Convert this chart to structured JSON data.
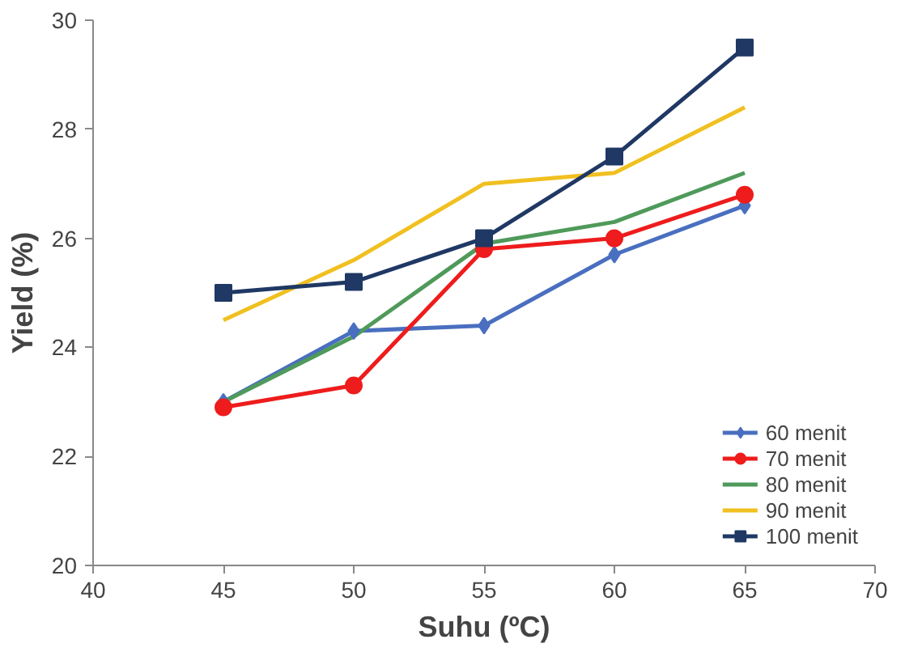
{
  "chart_data": {
    "type": "line",
    "xlabel": "Suhu (ºC)",
    "ylabel": "Yield (%)",
    "x": [
      45,
      50,
      55,
      60,
      65
    ],
    "xlim": [
      40,
      70
    ],
    "xticks": [
      40,
      45,
      50,
      55,
      60,
      65,
      70
    ],
    "ylim": [
      20,
      30
    ],
    "yticks": [
      20,
      22,
      24,
      26,
      28,
      30
    ],
    "grid": false,
    "legend": "bottom right",
    "line_style": "solid",
    "series": [
      {
        "name": "60 menit",
        "color": "#4a6fc0",
        "marker": "diamond",
        "values": [
          23.0,
          24.3,
          24.4,
          25.7,
          26.6
        ]
      },
      {
        "name": "70 menit",
        "color": "#ee1c1c",
        "marker": "circle",
        "values": [
          22.9,
          23.3,
          25.8,
          26.0,
          26.8
        ]
      },
      {
        "name": "80 menit",
        "color": "#4f9a5a",
        "marker": "none",
        "values": [
          23.0,
          24.2,
          25.9,
          26.3,
          27.2
        ]
      },
      {
        "name": "90 menit",
        "color": "#f0c020",
        "marker": "none",
        "values": [
          24.5,
          25.6,
          27.0,
          27.2,
          28.4
        ]
      },
      {
        "name": "100 menit",
        "color": "#1f3864",
        "marker": "square",
        "values": [
          25.0,
          25.2,
          26.0,
          27.5,
          29.5
        ]
      }
    ]
  }
}
